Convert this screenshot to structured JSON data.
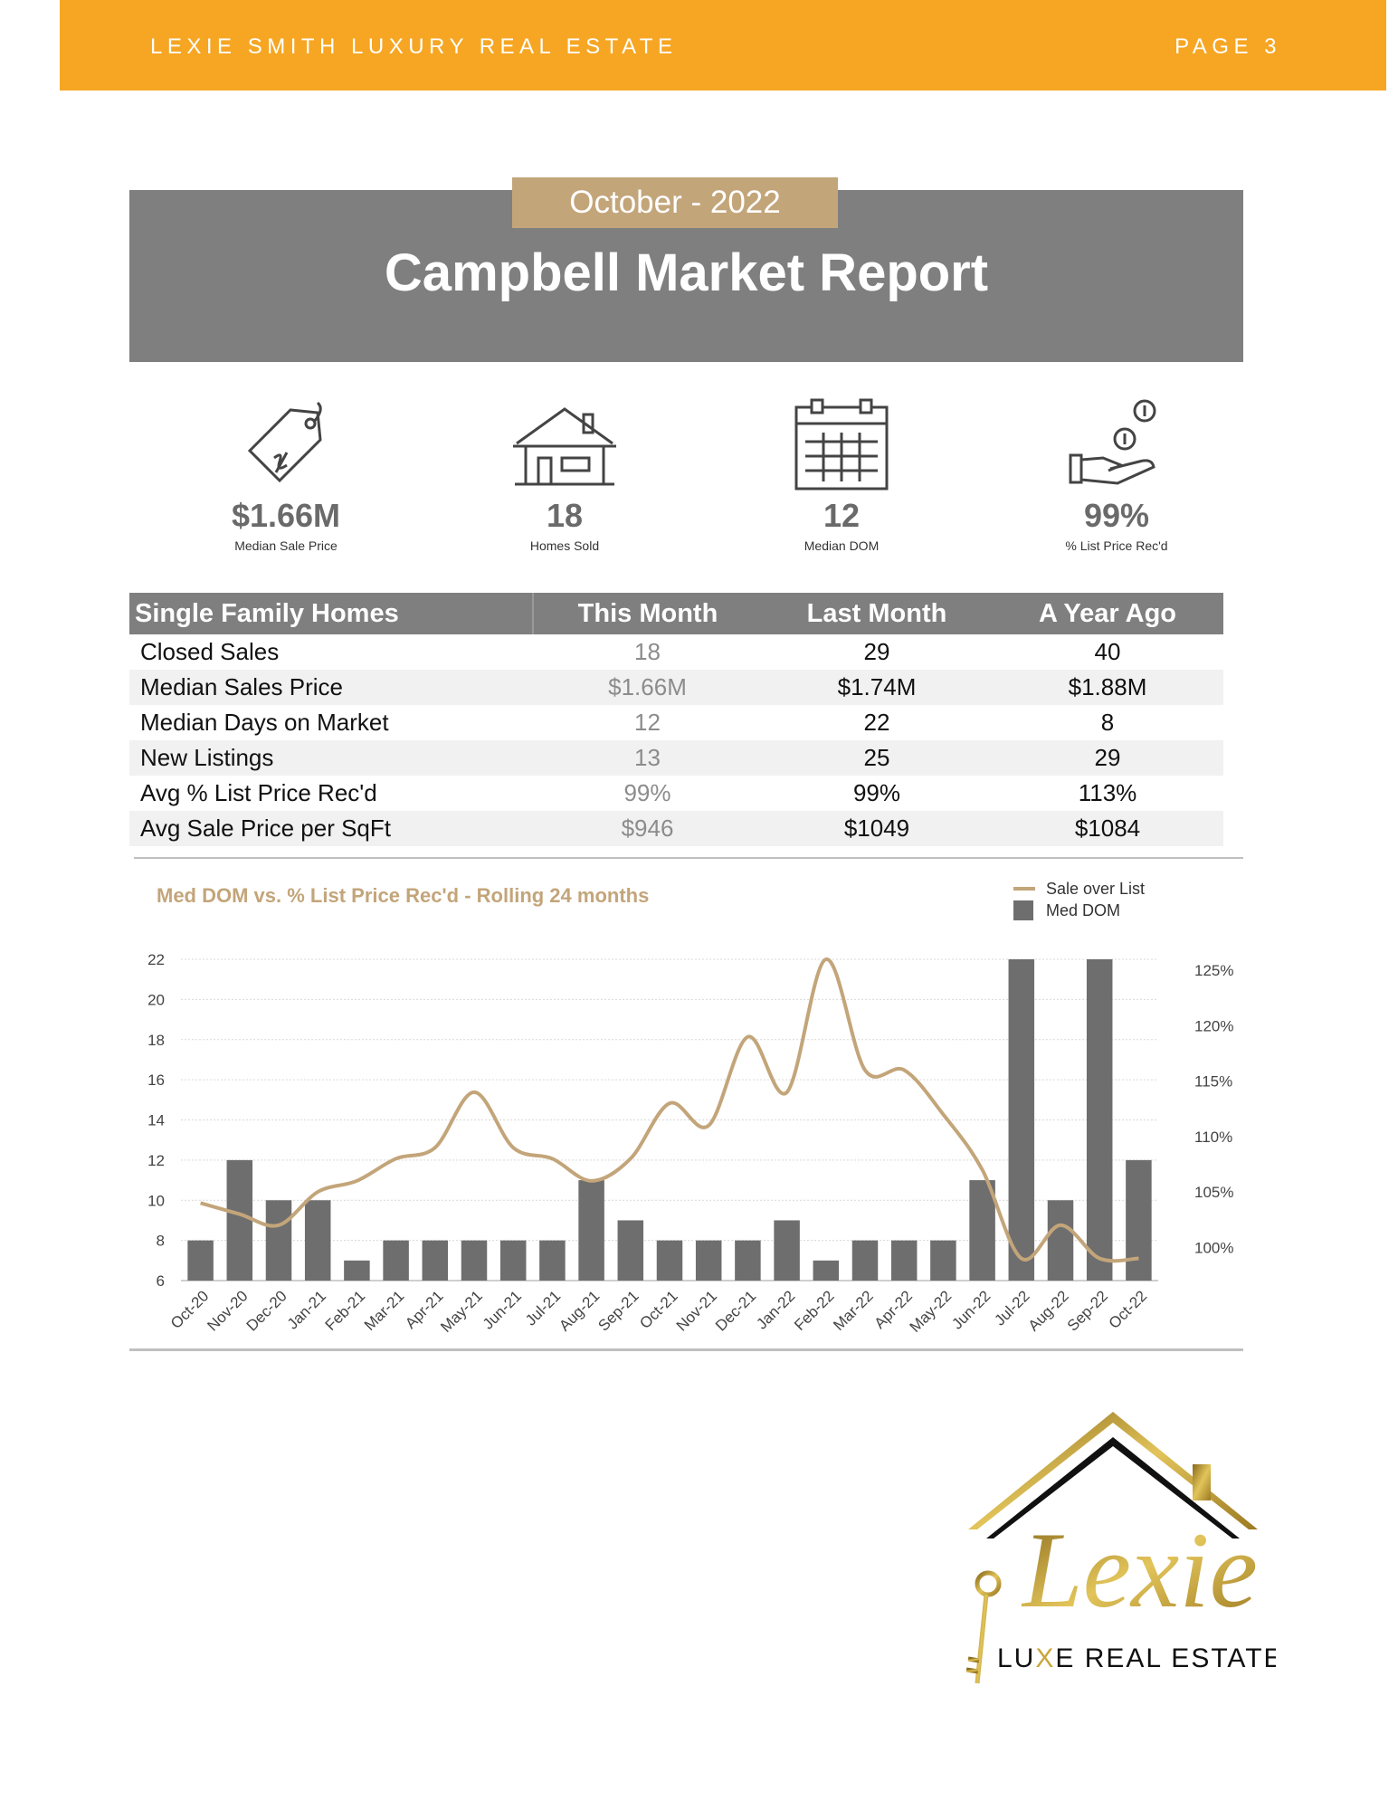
{
  "header": {
    "brand": "LEXIE SMITH LUXURY REAL ESTATE",
    "page": "PAGE 3",
    "color": "#f6a623"
  },
  "report": {
    "date": "October - 2022",
    "title": "Campbell Market Report"
  },
  "stats": [
    {
      "icon": "price-tag-icon",
      "value": "$1.66M",
      "label": "Median Sale Price"
    },
    {
      "icon": "house-icon",
      "value": "18",
      "label": "Homes Sold"
    },
    {
      "icon": "calendar-icon",
      "value": "12",
      "label": "Median DOM"
    },
    {
      "icon": "hand-coins-icon",
      "value": "99%",
      "label": "% List Price Rec'd"
    }
  ],
  "table": {
    "headers": [
      "Single Family Homes",
      "This Month",
      "Last Month",
      "A Year Ago"
    ],
    "rows": [
      [
        "Closed Sales",
        "18",
        "29",
        "40"
      ],
      [
        "Median Sales Price",
        "$1.66M",
        "$1.74M",
        "$1.88M"
      ],
      [
        "Median Days on Market",
        "12",
        "22",
        "8"
      ],
      [
        "New Listings",
        "13",
        "25",
        "29"
      ],
      [
        "Avg % List Price Rec'd",
        "99%",
        "99%",
        "113%"
      ],
      [
        "Avg Sale Price per SqFt",
        "$946",
        "$1049",
        "$1084"
      ]
    ]
  },
  "chart_data": {
    "type": "bar",
    "title": "Med DOM  vs. % List Price Rec'd - Rolling 24 months",
    "categories": [
      "Oct-20",
      "Nov-20",
      "Dec-20",
      "Jan-21",
      "Feb-21",
      "Mar-21",
      "Apr-21",
      "May-21",
      "Jun-21",
      "Jul-21",
      "Aug-21",
      "Sep-21",
      "Oct-21",
      "Nov-21",
      "Dec-21",
      "Jan-22",
      "Feb-22",
      "Mar-22",
      "Apr-22",
      "May-22",
      "Jun-22",
      "Jul-22",
      "Aug-22",
      "Sep-22",
      "Oct-22"
    ],
    "series": [
      {
        "name": "Med DOM",
        "type": "bar",
        "axis": "left",
        "color": "#6e6e6e",
        "values": [
          8,
          12,
          10,
          10,
          7,
          8,
          8,
          8,
          8,
          8,
          11,
          9,
          8,
          8,
          8,
          9,
          7,
          8,
          8,
          8,
          11,
          22,
          10,
          22,
          12
        ]
      },
      {
        "name": "Sale over List",
        "type": "line",
        "axis": "right",
        "color": "#c3a57a",
        "values": [
          104,
          103,
          102,
          105,
          106,
          108,
          109,
          114,
          109,
          108,
          106,
          108,
          113,
          111,
          119,
          114,
          126,
          116,
          116,
          112,
          107,
          99,
          102,
          99,
          99
        ]
      }
    ],
    "y_left": {
      "ticks": [
        6,
        8,
        10,
        12,
        14,
        16,
        18,
        20,
        22
      ],
      "ylim": [
        6,
        22
      ]
    },
    "y_right": {
      "ticks": [
        "100%",
        "105%",
        "110%",
        "115%",
        "120%",
        "125%"
      ],
      "values": [
        100,
        105,
        110,
        115,
        120,
        125
      ],
      "ylim": [
        97,
        126
      ]
    },
    "legend": {
      "position": "top-right",
      "entries": [
        "Sale over List",
        "Med DOM"
      ]
    },
    "grid": true
  },
  "logo": {
    "word": "Lexie",
    "tagline_pre": "LU",
    "tagline_x": "X",
    "tagline_post": "E REAL ESTATE"
  }
}
